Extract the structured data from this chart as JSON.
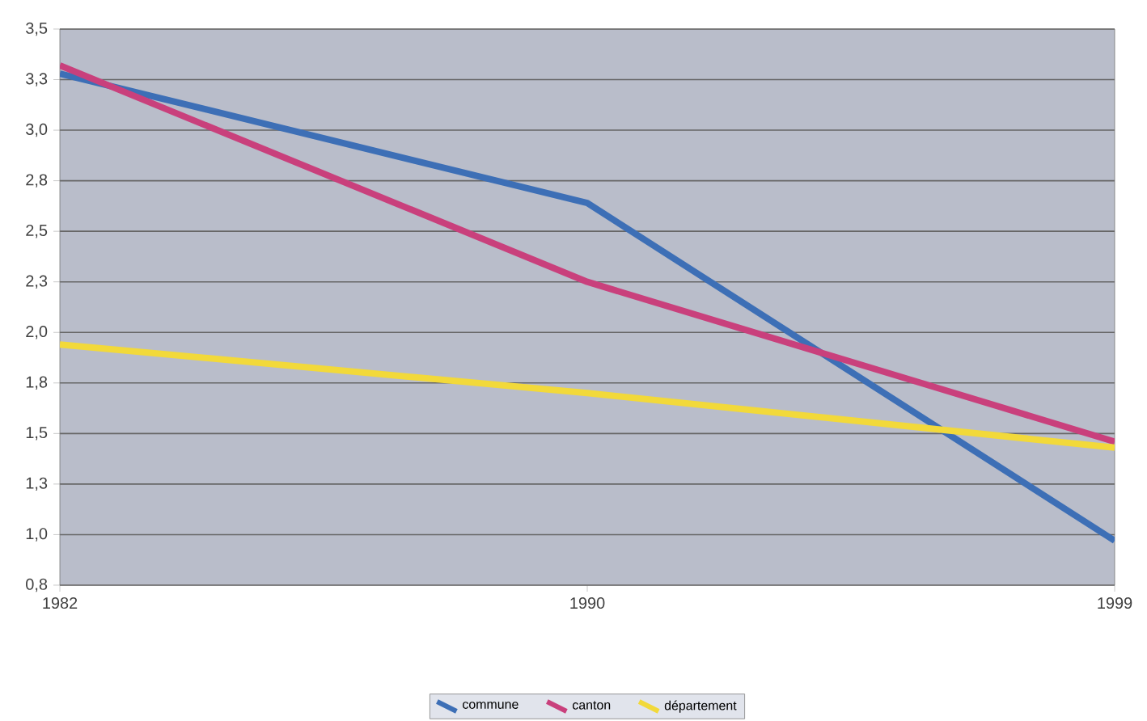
{
  "chart_data": {
    "type": "line",
    "categories": [
      "1982",
      "1990",
      "1999"
    ],
    "series": [
      {
        "name": "commune",
        "color": "#3d6fb6",
        "values": [
          3.28,
          2.64,
          0.97
        ]
      },
      {
        "name": "canton",
        "color": "#c9407c",
        "values": [
          3.32,
          2.25,
          1.46
        ]
      },
      {
        "name": "département",
        "color": "#f2d93a",
        "values": [
          1.94,
          1.7,
          1.43
        ]
      }
    ],
    "ylim": [
      0.75,
      3.5
    ],
    "yticks": [
      {
        "value": 0.75,
        "label": "0,8"
      },
      {
        "value": 1.0,
        "label": "1,0"
      },
      {
        "value": 1.25,
        "label": "1,3"
      },
      {
        "value": 1.5,
        "label": "1,5"
      },
      {
        "value": 1.75,
        "label": "1,8"
      },
      {
        "value": 2.0,
        "label": "2,0"
      },
      {
        "value": 2.25,
        "label": "2,3"
      },
      {
        "value": 2.5,
        "label": "2,5"
      },
      {
        "value": 2.75,
        "label": "2,8"
      },
      {
        "value": 3.0,
        "label": "3,0"
      },
      {
        "value": 3.25,
        "label": "3,3"
      },
      {
        "value": 3.5,
        "label": "3,5"
      }
    ],
    "grid": "y",
    "legend": "bottom",
    "marker": "none",
    "line_style": "solid"
  }
}
